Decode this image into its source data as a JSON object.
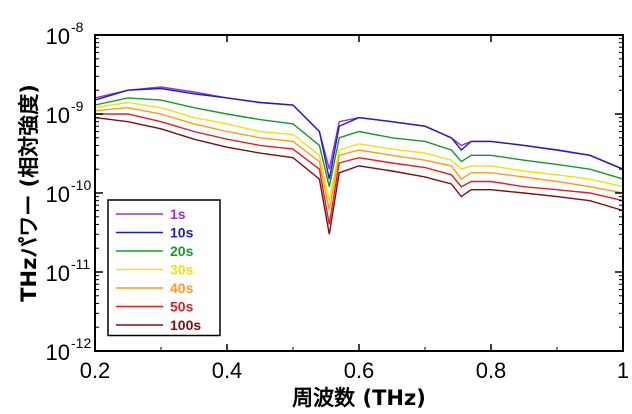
{
  "chart_data": {
    "type": "line",
    "title": "",
    "xlabel": "周波数 (THz)",
    "ylabel": "THzパワー (相対強度)",
    "xlim": [
      0.2,
      1.0
    ],
    "ylim": [
      1e-12,
      1e-08
    ],
    "yscale": "log",
    "grid": false,
    "legend_position": "lower-left",
    "x_ticks": [
      "0.2",
      "0.4",
      "0.6",
      "0.8",
      "1"
    ],
    "y_ticks": [
      {
        "base": "10",
        "exp": "-12"
      },
      {
        "base": "10",
        "exp": "-11"
      },
      {
        "base": "10",
        "exp": "-10"
      },
      {
        "base": "10",
        "exp": "-9"
      },
      {
        "base": "10",
        "exp": "-8"
      }
    ],
    "x": [
      0.2,
      0.25,
      0.3,
      0.35,
      0.4,
      0.45,
      0.5,
      0.54,
      0.555,
      0.57,
      0.6,
      0.65,
      0.7,
      0.74,
      0.755,
      0.77,
      0.8,
      0.85,
      0.9,
      0.95,
      1.0
    ],
    "series": [
      {
        "name": "1s",
        "color": "#9b30d0",
        "values": [
          1.6e-09,
          2e-09,
          2.2e-09,
          1.9e-09,
          1.6e-09,
          1.4e-09,
          1.3e-09,
          6e-10,
          2e-10,
          8e-10,
          9e-10,
          8e-10,
          7e-10,
          5e-10,
          4e-10,
          4.5e-10,
          4.5e-10,
          4e-10,
          3.5e-10,
          3e-10,
          2e-10
        ]
      },
      {
        "name": "10s",
        "color": "#1c1ccc",
        "values": [
          1.5e-09,
          2e-09,
          2.1e-09,
          1.8e-09,
          1.6e-09,
          1.4e-09,
          1.3e-09,
          6e-10,
          1.5e-10,
          7e-10,
          9e-10,
          8e-10,
          7e-10,
          5e-10,
          3.5e-10,
          4.5e-10,
          4.5e-10,
          4e-10,
          3.5e-10,
          3e-10,
          2e-10
        ]
      },
      {
        "name": "20s",
        "color": "#159a2a",
        "values": [
          1.3e-09,
          1.6e-09,
          1.5e-09,
          1.2e-09,
          1e-09,
          8.5e-10,
          7.5e-10,
          4e-10,
          1.2e-10,
          5e-10,
          6e-10,
          5e-10,
          4.5e-10,
          3.5e-10,
          2.5e-10,
          3e-10,
          3e-10,
          2.6e-10,
          2.3e-10,
          2e-10,
          1.5e-10
        ]
      },
      {
        "name": "30s",
        "color": "#f2e20a",
        "values": [
          1.2e-09,
          1.4e-09,
          1.2e-09,
          9e-10,
          7.5e-10,
          6e-10,
          5.5e-10,
          3e-10,
          8e-11,
          3.5e-10,
          4.2e-10,
          3.6e-10,
          3.2e-10,
          2.6e-10,
          2e-10,
          2.2e-10,
          2.2e-10,
          1.9e-10,
          1.7e-10,
          1.5e-10,
          1.2e-10
        ]
      },
      {
        "name": "40s",
        "color": "#ff9a1f",
        "values": [
          1.1e-09,
          1.2e-09,
          1e-09,
          7.5e-10,
          6e-10,
          5e-10,
          4.5e-10,
          2.5e-10,
          6e-11,
          3e-10,
          3.5e-10,
          3e-10,
          2.6e-10,
          2.2e-10,
          1.5e-10,
          1.8e-10,
          1.8e-10,
          1.6e-10,
          1.4e-10,
          1.2e-10,
          1e-10
        ]
      },
      {
        "name": "50s",
        "color": "#e02020",
        "values": [
          1e-09,
          1e-09,
          8e-10,
          6e-10,
          4.8e-10,
          4e-10,
          3.6e-10,
          2e-10,
          4e-11,
          2.4e-10,
          2.8e-10,
          2.4e-10,
          2.1e-10,
          1.7e-10,
          1.2e-10,
          1.4e-10,
          1.4e-10,
          1.2e-10,
          1.1e-10,
          1e-10,
          8e-11
        ]
      },
      {
        "name": "100s",
        "color": "#7a1010",
        "values": [
          9e-10,
          8e-10,
          6.5e-10,
          4.8e-10,
          3.8e-10,
          3.2e-10,
          2.8e-10,
          1.5e-10,
          3e-11,
          1.8e-10,
          2.2e-10,
          1.9e-10,
          1.6e-10,
          1.3e-10,
          9e-11,
          1.1e-10,
          1.1e-10,
          1e-10,
          9e-11,
          8e-11,
          6e-11
        ]
      }
    ]
  }
}
